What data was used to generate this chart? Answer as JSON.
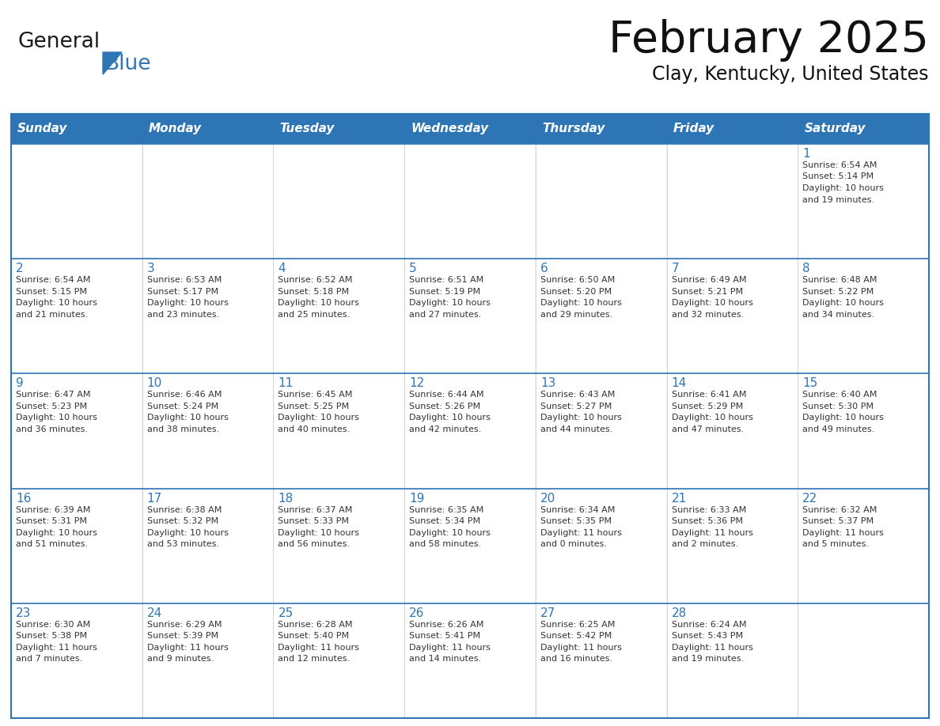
{
  "title": "February 2025",
  "subtitle": "Clay, Kentucky, United States",
  "header_bg": "#2E75B6",
  "header_text_color": "#FFFFFF",
  "cell_bg": "#F2F2F2",
  "border_color": "#2E75B6",
  "day_number_color": "#2E75B6",
  "text_color": "#333333",
  "days_of_week": [
    "Sunday",
    "Monday",
    "Tuesday",
    "Wednesday",
    "Thursday",
    "Friday",
    "Saturday"
  ],
  "weeks": [
    [
      {
        "day": null,
        "info": null
      },
      {
        "day": null,
        "info": null
      },
      {
        "day": null,
        "info": null
      },
      {
        "day": null,
        "info": null
      },
      {
        "day": null,
        "info": null
      },
      {
        "day": null,
        "info": null
      },
      {
        "day": 1,
        "info": "Sunrise: 6:54 AM\nSunset: 5:14 PM\nDaylight: 10 hours\nand 19 minutes."
      }
    ],
    [
      {
        "day": 2,
        "info": "Sunrise: 6:54 AM\nSunset: 5:15 PM\nDaylight: 10 hours\nand 21 minutes."
      },
      {
        "day": 3,
        "info": "Sunrise: 6:53 AM\nSunset: 5:17 PM\nDaylight: 10 hours\nand 23 minutes."
      },
      {
        "day": 4,
        "info": "Sunrise: 6:52 AM\nSunset: 5:18 PM\nDaylight: 10 hours\nand 25 minutes."
      },
      {
        "day": 5,
        "info": "Sunrise: 6:51 AM\nSunset: 5:19 PM\nDaylight: 10 hours\nand 27 minutes."
      },
      {
        "day": 6,
        "info": "Sunrise: 6:50 AM\nSunset: 5:20 PM\nDaylight: 10 hours\nand 29 minutes."
      },
      {
        "day": 7,
        "info": "Sunrise: 6:49 AM\nSunset: 5:21 PM\nDaylight: 10 hours\nand 32 minutes."
      },
      {
        "day": 8,
        "info": "Sunrise: 6:48 AM\nSunset: 5:22 PM\nDaylight: 10 hours\nand 34 minutes."
      }
    ],
    [
      {
        "day": 9,
        "info": "Sunrise: 6:47 AM\nSunset: 5:23 PM\nDaylight: 10 hours\nand 36 minutes."
      },
      {
        "day": 10,
        "info": "Sunrise: 6:46 AM\nSunset: 5:24 PM\nDaylight: 10 hours\nand 38 minutes."
      },
      {
        "day": 11,
        "info": "Sunrise: 6:45 AM\nSunset: 5:25 PM\nDaylight: 10 hours\nand 40 minutes."
      },
      {
        "day": 12,
        "info": "Sunrise: 6:44 AM\nSunset: 5:26 PM\nDaylight: 10 hours\nand 42 minutes."
      },
      {
        "day": 13,
        "info": "Sunrise: 6:43 AM\nSunset: 5:27 PM\nDaylight: 10 hours\nand 44 minutes."
      },
      {
        "day": 14,
        "info": "Sunrise: 6:41 AM\nSunset: 5:29 PM\nDaylight: 10 hours\nand 47 minutes."
      },
      {
        "day": 15,
        "info": "Sunrise: 6:40 AM\nSunset: 5:30 PM\nDaylight: 10 hours\nand 49 minutes."
      }
    ],
    [
      {
        "day": 16,
        "info": "Sunrise: 6:39 AM\nSunset: 5:31 PM\nDaylight: 10 hours\nand 51 minutes."
      },
      {
        "day": 17,
        "info": "Sunrise: 6:38 AM\nSunset: 5:32 PM\nDaylight: 10 hours\nand 53 minutes."
      },
      {
        "day": 18,
        "info": "Sunrise: 6:37 AM\nSunset: 5:33 PM\nDaylight: 10 hours\nand 56 minutes."
      },
      {
        "day": 19,
        "info": "Sunrise: 6:35 AM\nSunset: 5:34 PM\nDaylight: 10 hours\nand 58 minutes."
      },
      {
        "day": 20,
        "info": "Sunrise: 6:34 AM\nSunset: 5:35 PM\nDaylight: 11 hours\nand 0 minutes."
      },
      {
        "day": 21,
        "info": "Sunrise: 6:33 AM\nSunset: 5:36 PM\nDaylight: 11 hours\nand 2 minutes."
      },
      {
        "day": 22,
        "info": "Sunrise: 6:32 AM\nSunset: 5:37 PM\nDaylight: 11 hours\nand 5 minutes."
      }
    ],
    [
      {
        "day": 23,
        "info": "Sunrise: 6:30 AM\nSunset: 5:38 PM\nDaylight: 11 hours\nand 7 minutes."
      },
      {
        "day": 24,
        "info": "Sunrise: 6:29 AM\nSunset: 5:39 PM\nDaylight: 11 hours\nand 9 minutes."
      },
      {
        "day": 25,
        "info": "Sunrise: 6:28 AM\nSunset: 5:40 PM\nDaylight: 11 hours\nand 12 minutes."
      },
      {
        "day": 26,
        "info": "Sunrise: 6:26 AM\nSunset: 5:41 PM\nDaylight: 11 hours\nand 14 minutes."
      },
      {
        "day": 27,
        "info": "Sunrise: 6:25 AM\nSunset: 5:42 PM\nDaylight: 11 hours\nand 16 minutes."
      },
      {
        "day": 28,
        "info": "Sunrise: 6:24 AM\nSunset: 5:43 PM\nDaylight: 11 hours\nand 19 minutes."
      },
      {
        "day": null,
        "info": null
      }
    ]
  ],
  "logo_general_color": "#1a1a1a",
  "logo_blue_color": "#2E75B6",
  "figsize": [
    11.88,
    9.18
  ],
  "dpi": 100
}
